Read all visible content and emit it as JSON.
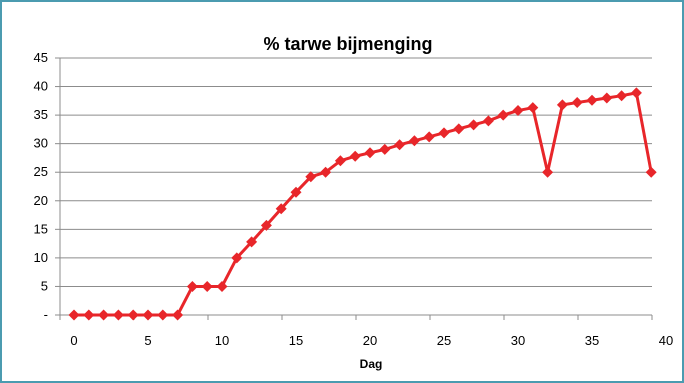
{
  "chart_data": {
    "type": "line",
    "title": "% tarwe bijmenging",
    "xlabel": "Dag",
    "ylabel": "",
    "xlim": [
      0,
      40
    ],
    "ylim": [
      0,
      45
    ],
    "x_ticks": [
      0,
      5,
      10,
      15,
      20,
      25,
      30,
      35,
      40
    ],
    "y_ticks": [
      {
        "value": 0,
        "label": "-"
      },
      {
        "value": 5,
        "label": "5"
      },
      {
        "value": 10,
        "label": "10"
      },
      {
        "value": 15,
        "label": "15"
      },
      {
        "value": 20,
        "label": "20"
      },
      {
        "value": 25,
        "label": "25"
      },
      {
        "value": 30,
        "label": "30"
      },
      {
        "value": 35,
        "label": "35"
      },
      {
        "value": 40,
        "label": "40"
      },
      {
        "value": 45,
        "label": "45"
      }
    ],
    "grid": "horizontal",
    "legend": "none",
    "series": [
      {
        "color": "#e8262a",
        "marker": "diamond",
        "x": [
          0,
          1,
          2,
          3,
          4,
          5,
          6,
          7,
          8,
          9,
          10,
          11,
          12,
          13,
          14,
          15,
          16,
          17,
          18,
          19,
          20,
          21,
          22,
          23,
          24,
          25,
          26,
          27,
          28,
          29,
          30,
          31,
          32,
          33,
          34,
          35,
          36,
          37,
          38,
          39
        ],
        "values": [
          0,
          0,
          0,
          0,
          0,
          0,
          0,
          0,
          5,
          5,
          5,
          10,
          12.8,
          15.7,
          18.6,
          21.5,
          24.2,
          25,
          27,
          27.8,
          28.4,
          29,
          29.8,
          30.5,
          31.2,
          31.9,
          32.6,
          33.3,
          34,
          35,
          35.8,
          36.3,
          25,
          36.8,
          37.2,
          37.6,
          38,
          38.4,
          38.9,
          25
        ]
      }
    ]
  }
}
